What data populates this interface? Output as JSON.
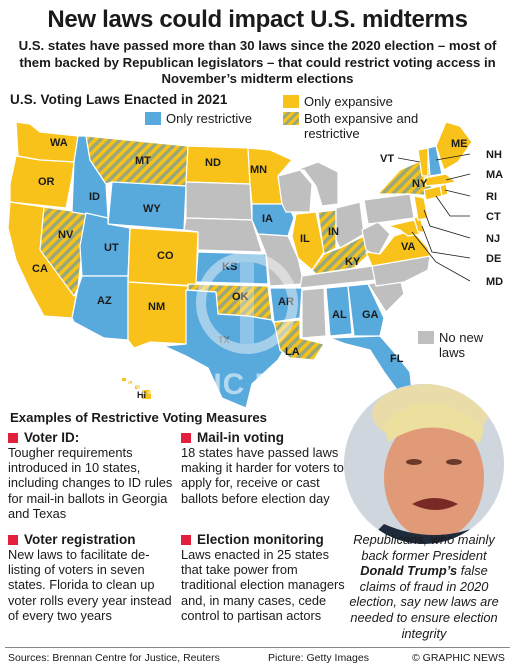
{
  "headline": "New laws could impact U.S. midterms",
  "intro": "U.S. states have passed more than 30 laws since the 2020 election – most of them backed by Republican legislators – that could restrict voting access in November’s midterm elections",
  "map": {
    "title": "U.S. Voting Laws Enacted in 2021",
    "legend": {
      "only_expansive": "Only expansive",
      "only_restrictive": "Only restrictive",
      "both": "Both expansive and restrictive",
      "no_new_laws": "No new laws"
    },
    "colors": {
      "only_expansive": "#f8c21a",
      "only_restrictive": "#58a9dc",
      "both": "hatched yellow/green",
      "no_new_laws": "#bfbfbf"
    },
    "states": [
      {
        "label": "WA",
        "category": "only_expansive"
      },
      {
        "label": "OR",
        "category": "only_expansive"
      },
      {
        "label": "CA",
        "category": "only_expansive"
      },
      {
        "label": "NV",
        "category": "both"
      },
      {
        "label": "ID",
        "category": "only_restrictive"
      },
      {
        "label": "MT",
        "category": "both"
      },
      {
        "label": "WY",
        "category": "only_restrictive"
      },
      {
        "label": "UT",
        "category": "only_restrictive"
      },
      {
        "label": "AZ",
        "category": "only_restrictive"
      },
      {
        "label": "CO",
        "category": "only_expansive"
      },
      {
        "label": "NM",
        "category": "only_expansive"
      },
      {
        "label": "ND",
        "category": "only_expansive"
      },
      {
        "label": "KS",
        "category": "only_restrictive"
      },
      {
        "label": "OK",
        "category": "both"
      },
      {
        "label": "TX",
        "category": "only_restrictive"
      },
      {
        "label": "MN",
        "category": "only_expansive"
      },
      {
        "label": "IA",
        "category": "only_restrictive"
      },
      {
        "label": "AR",
        "category": "only_restrictive"
      },
      {
        "label": "LA",
        "category": "both"
      },
      {
        "label": "IL",
        "category": "only_expansive"
      },
      {
        "label": "IN",
        "category": "both"
      },
      {
        "label": "KY",
        "category": "both"
      },
      {
        "label": "AL",
        "category": "only_restrictive"
      },
      {
        "label": "GA",
        "category": "only_restrictive"
      },
      {
        "label": "FL",
        "category": "only_restrictive"
      },
      {
        "label": "VA",
        "category": "only_expansive"
      },
      {
        "label": "NY",
        "category": "both"
      },
      {
        "label": "ME",
        "category": "only_expansive"
      },
      {
        "label": "VT",
        "category": "only_expansive"
      },
      {
        "label": "NH",
        "category": "only_restrictive"
      },
      {
        "label": "MA",
        "category": "only_expansive"
      },
      {
        "label": "RI",
        "category": "only_expansive"
      },
      {
        "label": "CT",
        "category": "only_expansive"
      },
      {
        "label": "NJ",
        "category": "only_expansive"
      },
      {
        "label": "DE",
        "category": "only_expansive"
      },
      {
        "label": "MD",
        "category": "only_expansive"
      },
      {
        "label": "HI",
        "category": "only_expansive"
      }
    ]
  },
  "watermark": "GRAPHIC NEWS",
  "examples": {
    "title": "Examples of Restrictive Voting Measures",
    "voter_id": {
      "head": "Voter ID:",
      "body": "Tougher requirements introduced in 10 states, including changes to ID rules for mail-in ballots in Georgia and Texas"
    },
    "mail_in": {
      "head": "Mail-in voting",
      "body": "18 states have passed laws making it harder for voters to apply for, receive or cast ballots before election day"
    },
    "registration": {
      "head": "Voter registration",
      "body": "New laws to facilitate de-listing of voters in seven states. Florida to clean up voter rolls every year instead of every two years"
    },
    "monitoring": {
      "head": "Election monitoring",
      "body": "Laws enacted in 25 states that take power from traditional election managers and, in many cases, cede control to partisan actors"
    }
  },
  "caption": {
    "before": "Republicans, who mainly back former President ",
    "name": "Donald Trump’s",
    "after": " false claims of fraud in 2020 election, say new laws are needed to ensure election integrity"
  },
  "footer": {
    "sources": "Sources: Brennan Centre for Justice, Reuters",
    "picture": "Picture: Getty Images",
    "credit": "© GRAPHIC NEWS"
  }
}
